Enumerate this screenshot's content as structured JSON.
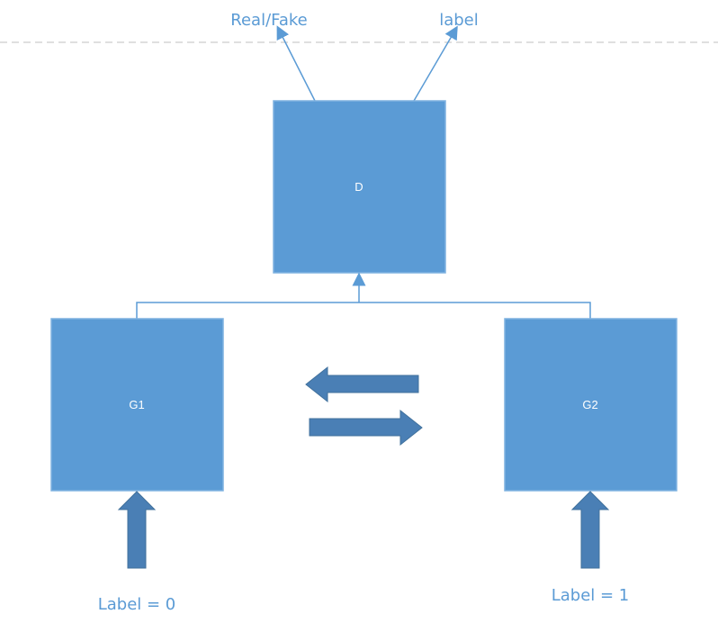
{
  "outputs": {
    "real_fake": "Real/Fake",
    "label": "label"
  },
  "nodes": {
    "discriminator": "D",
    "generator_1": "G1",
    "generator_2": "G2"
  },
  "inputs": {
    "g1_label": "Label = 0",
    "g2_label": "Label = 1"
  },
  "colors": {
    "box_fill": "#5b9bd5",
    "box_border": "#7fb2e0",
    "block_arrow_fill": "#4a7fb5",
    "line": "#5b9bd5",
    "dashed_line": "#bfbfbf",
    "text": "#5b9bd5"
  }
}
